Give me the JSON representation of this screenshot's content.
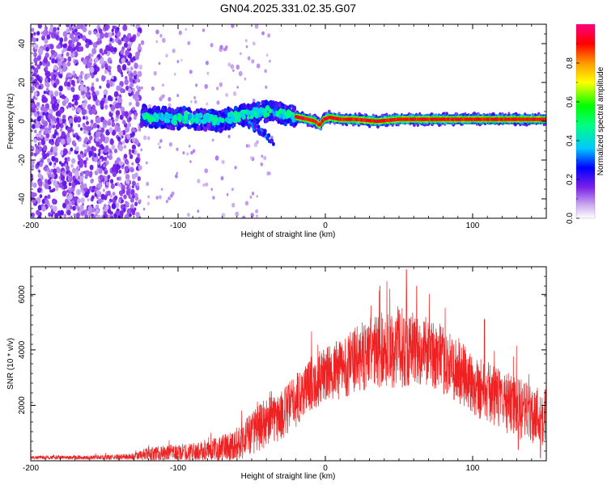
{
  "title": "GN04.2025.331.02.35.G07",
  "chart_data": [
    {
      "type": "heatmap",
      "xlabel": "Height of straight line (km)",
      "ylabel": "Frequency (Hz)",
      "xlim": [
        -200,
        150
      ],
      "ylim": [
        -50,
        50
      ],
      "xticks": [
        -200,
        -100,
        0,
        100
      ],
      "yticks": [
        -40,
        -20,
        0,
        20,
        40
      ],
      "grid": false,
      "trace": [
        {
          "x": -125,
          "y": 3
        },
        {
          "x": -118,
          "y": 2
        },
        {
          "x": -110,
          "y": 2
        },
        {
          "x": -102,
          "y": 1
        },
        {
          "x": -95,
          "y": 2
        },
        {
          "x": -88,
          "y": 1
        },
        {
          "x": -80,
          "y": 1
        },
        {
          "x": -72,
          "y": 0
        },
        {
          "x": -64,
          "y": 2
        },
        {
          "x": -56,
          "y": 3
        },
        {
          "x": -48,
          "y": 4
        },
        {
          "x": -42,
          "y": 5
        },
        {
          "x": -36,
          "y": 5
        },
        {
          "x": -30,
          "y": 4
        },
        {
          "x": -24,
          "y": 3
        },
        {
          "x": -18,
          "y": 2
        },
        {
          "x": -12,
          "y": 1
        },
        {
          "x": -7,
          "y": 0
        },
        {
          "x": -4,
          "y": -2
        },
        {
          "x": -1,
          "y": 1
        },
        {
          "x": 3,
          "y": 2
        },
        {
          "x": 10,
          "y": 1
        },
        {
          "x": 20,
          "y": 1
        },
        {
          "x": 35,
          "y": 0
        },
        {
          "x": 50,
          "y": 1
        },
        {
          "x": 65,
          "y": 1
        },
        {
          "x": 80,
          "y": 1
        },
        {
          "x": 95,
          "y": 1
        },
        {
          "x": 110,
          "y": 1
        },
        {
          "x": 125,
          "y": 1
        },
        {
          "x": 140,
          "y": 1
        },
        {
          "x": 150,
          "y": 1
        }
      ],
      "branch": [
        {
          "x": -52,
          "y": -2
        },
        {
          "x": -46,
          "y": -4
        },
        {
          "x": -40,
          "y": -7
        },
        {
          "x": -36,
          "y": -11
        }
      ],
      "colorbar": {
        "label": "Normalized spectral amplitude",
        "range": [
          0,
          1
        ],
        "ticks": [
          0,
          0.2,
          0.4,
          0.6,
          0.8
        ],
        "tick_labels": [
          "0.0",
          "0.2",
          "0.4",
          "0.6",
          "0.8"
        ]
      }
    },
    {
      "type": "line",
      "color": "#ee2222",
      "xlabel": "Height of straight line (km)",
      "ylabel": "SNR (10 * v/v)",
      "xlim": [
        -200,
        150
      ],
      "ylim": [
        0,
        7000
      ],
      "xticks": [
        -200,
        -100,
        0,
        100
      ],
      "yticks": [
        2000,
        4000,
        6000
      ],
      "grid": false,
      "envelope": [
        {
          "x": -200,
          "base": 120,
          "spread": 60
        },
        {
          "x": -150,
          "base": 120,
          "spread": 80
        },
        {
          "x": -130,
          "base": 150,
          "spread": 120
        },
        {
          "x": -120,
          "base": 250,
          "spread": 250
        },
        {
          "x": -100,
          "base": 300,
          "spread": 300
        },
        {
          "x": -80,
          "base": 350,
          "spread": 350
        },
        {
          "x": -60,
          "base": 600,
          "spread": 600
        },
        {
          "x": -50,
          "base": 1000,
          "spread": 800
        },
        {
          "x": -40,
          "base": 1400,
          "spread": 900
        },
        {
          "x": -30,
          "base": 1600,
          "spread": 900
        },
        {
          "x": -20,
          "base": 2200,
          "spread": 1000
        },
        {
          "x": -10,
          "base": 2800,
          "spread": 1000
        },
        {
          "x": 0,
          "base": 3100,
          "spread": 1000
        },
        {
          "x": 10,
          "base": 3300,
          "spread": 1100
        },
        {
          "x": 20,
          "base": 3600,
          "spread": 1200
        },
        {
          "x": 30,
          "base": 3900,
          "spread": 1300
        },
        {
          "x": 40,
          "base": 4000,
          "spread": 1400
        },
        {
          "x": 50,
          "base": 4100,
          "spread": 1500
        },
        {
          "x": 60,
          "base": 4000,
          "spread": 1300
        },
        {
          "x": 70,
          "base": 3900,
          "spread": 1200
        },
        {
          "x": 80,
          "base": 3600,
          "spread": 1200
        },
        {
          "x": 90,
          "base": 3200,
          "spread": 1200
        },
        {
          "x": 100,
          "base": 2800,
          "spread": 1200
        },
        {
          "x": 110,
          "base": 2500,
          "spread": 1100
        },
        {
          "x": 120,
          "base": 2200,
          "spread": 1100
        },
        {
          "x": 130,
          "base": 1900,
          "spread": 1100
        },
        {
          "x": 140,
          "base": 1700,
          "spread": 1100
        },
        {
          "x": 150,
          "base": 1600,
          "spread": 1100
        }
      ],
      "notable_peaks": [
        {
          "x": 37,
          "y": 6300
        },
        {
          "x": 55,
          "y": 6900
        },
        {
          "x": 62,
          "y": 6300
        },
        {
          "x": 108,
          "y": 5100
        }
      ],
      "notable_dips": [
        {
          "x": 131,
          "y": 400
        },
        {
          "x": 146,
          "y": 100
        }
      ]
    }
  ]
}
